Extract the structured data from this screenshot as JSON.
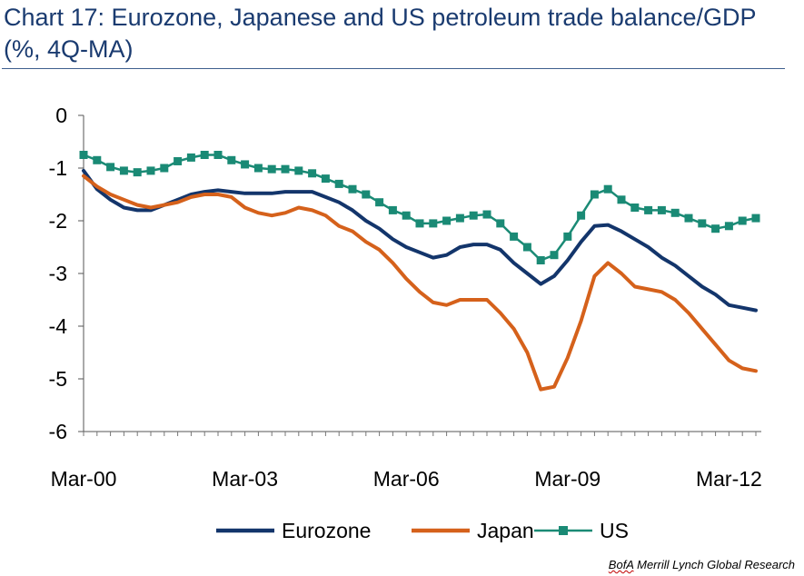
{
  "chart_data": {
    "type": "line",
    "title": "Chart 17: Eurozone, Japanese and US petroleum trade balance/GDP (%, 4Q-MA)",
    "xlabel": "",
    "ylabel": "",
    "ylim": [
      -6,
      0
    ],
    "yticks": [
      "0",
      "-1",
      "-2",
      "-3",
      "-4",
      "-5",
      "-6"
    ],
    "ytick_values": [
      0,
      -1,
      -2,
      -3,
      -4,
      -5,
      -6
    ],
    "xtick_labels": [
      "Mar-00",
      "Mar-03",
      "Mar-06",
      "Mar-09",
      "Mar-12"
    ],
    "xtick_index": [
      0,
      12,
      24,
      36,
      48
    ],
    "n_points": 51,
    "series": [
      {
        "name": "Eurozone",
        "color": "#13356b",
        "marker": "none",
        "values": [
          -1.05,
          -1.4,
          -1.6,
          -1.75,
          -1.8,
          -1.8,
          -1.7,
          -1.6,
          -1.5,
          -1.45,
          -1.42,
          -1.45,
          -1.48,
          -1.48,
          -1.48,
          -1.45,
          -1.45,
          -1.45,
          -1.55,
          -1.65,
          -1.8,
          -2.0,
          -2.15,
          -2.35,
          -2.5,
          -2.6,
          -2.7,
          -2.65,
          -2.5,
          -2.45,
          -2.45,
          -2.55,
          -2.8,
          -3.0,
          -3.2,
          -3.05,
          -2.75,
          -2.4,
          -2.1,
          -2.08,
          -2.2,
          -2.35,
          -2.5,
          -2.7,
          -2.85,
          -3.05,
          -3.25,
          -3.4,
          -3.6,
          -3.65,
          -3.7
        ]
      },
      {
        "name": "Japan",
        "color": "#d5611b",
        "marker": "none",
        "values": [
          -1.15,
          -1.35,
          -1.5,
          -1.6,
          -1.7,
          -1.75,
          -1.7,
          -1.65,
          -1.55,
          -1.5,
          -1.5,
          -1.55,
          -1.75,
          -1.85,
          -1.9,
          -1.85,
          -1.75,
          -1.8,
          -1.9,
          -2.1,
          -2.2,
          -2.4,
          -2.55,
          -2.8,
          -3.1,
          -3.35,
          -3.55,
          -3.6,
          -3.5,
          -3.5,
          -3.5,
          -3.75,
          -4.05,
          -4.5,
          -5.2,
          -5.15,
          -4.6,
          -3.9,
          -3.05,
          -2.8,
          -3.0,
          -3.25,
          -3.3,
          -3.35,
          -3.5,
          -3.75,
          -4.05,
          -4.35,
          -4.65,
          -4.8,
          -4.85
        ]
      },
      {
        "name": "US",
        "color": "#1a8a75",
        "marker": "square",
        "values": [
          -0.75,
          -0.85,
          -0.98,
          -1.05,
          -1.08,
          -1.05,
          -1.0,
          -0.87,
          -0.8,
          -0.75,
          -0.75,
          -0.85,
          -0.93,
          -1.0,
          -1.02,
          -1.02,
          -1.05,
          -1.1,
          -1.2,
          -1.3,
          -1.4,
          -1.5,
          -1.65,
          -1.8,
          -1.9,
          -2.05,
          -2.05,
          -2.0,
          -1.95,
          -1.9,
          -1.88,
          -2.05,
          -2.3,
          -2.5,
          -2.75,
          -2.65,
          -2.3,
          -1.9,
          -1.5,
          -1.4,
          -1.6,
          -1.75,
          -1.8,
          -1.8,
          -1.85,
          -1.95,
          -2.05,
          -2.15,
          -2.1,
          -2.0,
          -1.95
        ]
      }
    ],
    "legend": {
      "position": "bottom"
    },
    "grid": false
  },
  "source": {
    "bofa": "BofA",
    "rest": " Merrill Lynch Global Research"
  }
}
